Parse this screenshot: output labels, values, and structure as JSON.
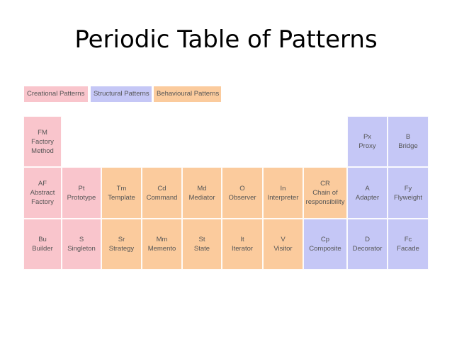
{
  "title": "Periodic Table of Patterns",
  "colors": {
    "creational": "#f9c5cc",
    "structural": "#c5c7f6",
    "behavioural": "#fbcb9d"
  },
  "legend": [
    {
      "label": "Creational Patterns",
      "category": "creational"
    },
    {
      "label": "Structural Patterns",
      "category": "structural"
    },
    {
      "label": "Behavioural Patterns",
      "category": "behavioural"
    }
  ],
  "cells": [
    {
      "symbol": "FM",
      "name": "Factory\nMethod",
      "category": "creational",
      "row": 0,
      "col": 0
    },
    {
      "symbol": "Px",
      "name": "Proxy",
      "category": "structural",
      "row": 0,
      "col": 8
    },
    {
      "symbol": "B",
      "name": "Bridge",
      "category": "structural",
      "row": 0,
      "col": 9
    },
    {
      "symbol": "AF",
      "name": "Abstract\nFactory",
      "category": "creational",
      "row": 1,
      "col": 0
    },
    {
      "symbol": "Pt",
      "name": "Prototype",
      "category": "creational",
      "row": 1,
      "col": 1
    },
    {
      "symbol": "Tm",
      "name": "Template",
      "category": "behavioural",
      "row": 1,
      "col": 2
    },
    {
      "symbol": "Cd",
      "name": "Command",
      "category": "behavioural",
      "row": 1,
      "col": 3
    },
    {
      "symbol": "Md",
      "name": "Mediator",
      "category": "behavioural",
      "row": 1,
      "col": 4
    },
    {
      "symbol": "O",
      "name": "Observer",
      "category": "behavioural",
      "row": 1,
      "col": 5
    },
    {
      "symbol": "In",
      "name": "Interpreter",
      "category": "behavioural",
      "row": 1,
      "col": 6
    },
    {
      "symbol": "CR",
      "name": "Chain of\nresponsibility",
      "category": "behavioural",
      "row": 1,
      "col": 7
    },
    {
      "symbol": "A",
      "name": "Adapter",
      "category": "structural",
      "row": 1,
      "col": 8
    },
    {
      "symbol": "Fy",
      "name": "Flyweight",
      "category": "structural",
      "row": 1,
      "col": 9
    },
    {
      "symbol": "Bu",
      "name": "Builder",
      "category": "creational",
      "row": 2,
      "col": 0
    },
    {
      "symbol": "S",
      "name": "Singleton",
      "category": "creational",
      "row": 2,
      "col": 1
    },
    {
      "symbol": "Sr",
      "name": "Strategy",
      "category": "behavioural",
      "row": 2,
      "col": 2
    },
    {
      "symbol": "Mm",
      "name": "Memento",
      "category": "behavioural",
      "row": 2,
      "col": 3
    },
    {
      "symbol": "St",
      "name": "State",
      "category": "behavioural",
      "row": 2,
      "col": 4
    },
    {
      "symbol": "It",
      "name": "Iterator",
      "category": "behavioural",
      "row": 2,
      "col": 5
    },
    {
      "symbol": "V",
      "name": "Visitor",
      "category": "behavioural",
      "row": 2,
      "col": 6
    },
    {
      "symbol": "Cp",
      "name": "Composite",
      "category": "structural",
      "row": 2,
      "col": 7
    },
    {
      "symbol": "D",
      "name": "Decorator",
      "category": "structural",
      "row": 2,
      "col": 8
    },
    {
      "symbol": "Fc",
      "name": "Facade",
      "category": "structural",
      "row": 2,
      "col": 9
    }
  ]
}
